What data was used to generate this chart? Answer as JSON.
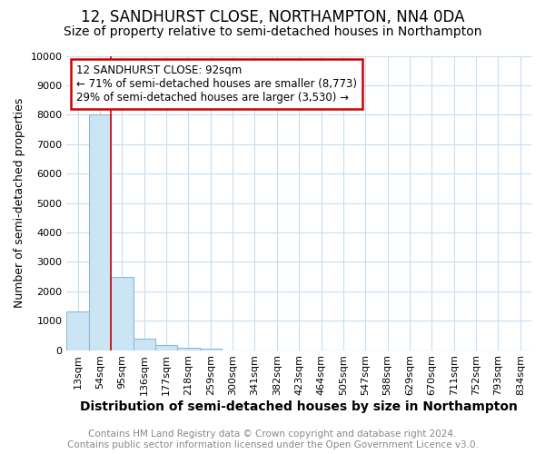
{
  "title": "12, SANDHURST CLOSE, NORTHAMPTON, NN4 0DA",
  "subtitle": "Size of property relative to semi-detached houses in Northampton",
  "xlabel": "Distribution of semi-detached houses by size in Northampton",
  "ylabel": "Number of semi-detached properties",
  "footer_line1": "Contains HM Land Registry data © Crown copyright and database right 2024.",
  "footer_line2": "Contains public sector information licensed under the Open Government Licence v3.0.",
  "categories": [
    "13sqm",
    "54sqm",
    "95sqm",
    "136sqm",
    "177sqm",
    "218sqm",
    "259sqm",
    "300sqm",
    "341sqm",
    "382sqm",
    "423sqm",
    "464sqm",
    "505sqm",
    "547sqm",
    "588sqm",
    "629sqm",
    "670sqm",
    "711sqm",
    "752sqm",
    "793sqm",
    "834sqm"
  ],
  "values": [
    1300,
    8000,
    2500,
    400,
    180,
    80,
    60,
    0,
    0,
    0,
    0,
    0,
    0,
    0,
    0,
    0,
    0,
    0,
    0,
    0,
    0
  ],
  "bar_color": "#cce5f5",
  "bar_edge_color": "#88bbdd",
  "bar_edge_width": 0.8,
  "grid_color": "#c8ddf0",
  "background_color": "#ffffff",
  "plot_bg_color": "#ffffff",
  "red_line_x": 1.5,
  "red_line_color": "#cc0000",
  "annotation_text": "12 SANDHURST CLOSE: 92sqm\n← 71% of semi-detached houses are smaller (8,773)\n29% of semi-detached houses are larger (3,530) →",
  "annotation_box_color": "#ffffff",
  "annotation_box_edge_color": "#cc0000",
  "ylim": [
    0,
    10000
  ],
  "yticks": [
    0,
    1000,
    2000,
    3000,
    4000,
    5000,
    6000,
    7000,
    8000,
    9000,
    10000
  ],
  "title_fontsize": 12,
  "subtitle_fontsize": 10,
  "xlabel_fontsize": 10,
  "ylabel_fontsize": 9,
  "tick_fontsize": 8,
  "annotation_fontsize": 8.5,
  "footer_fontsize": 7.5
}
